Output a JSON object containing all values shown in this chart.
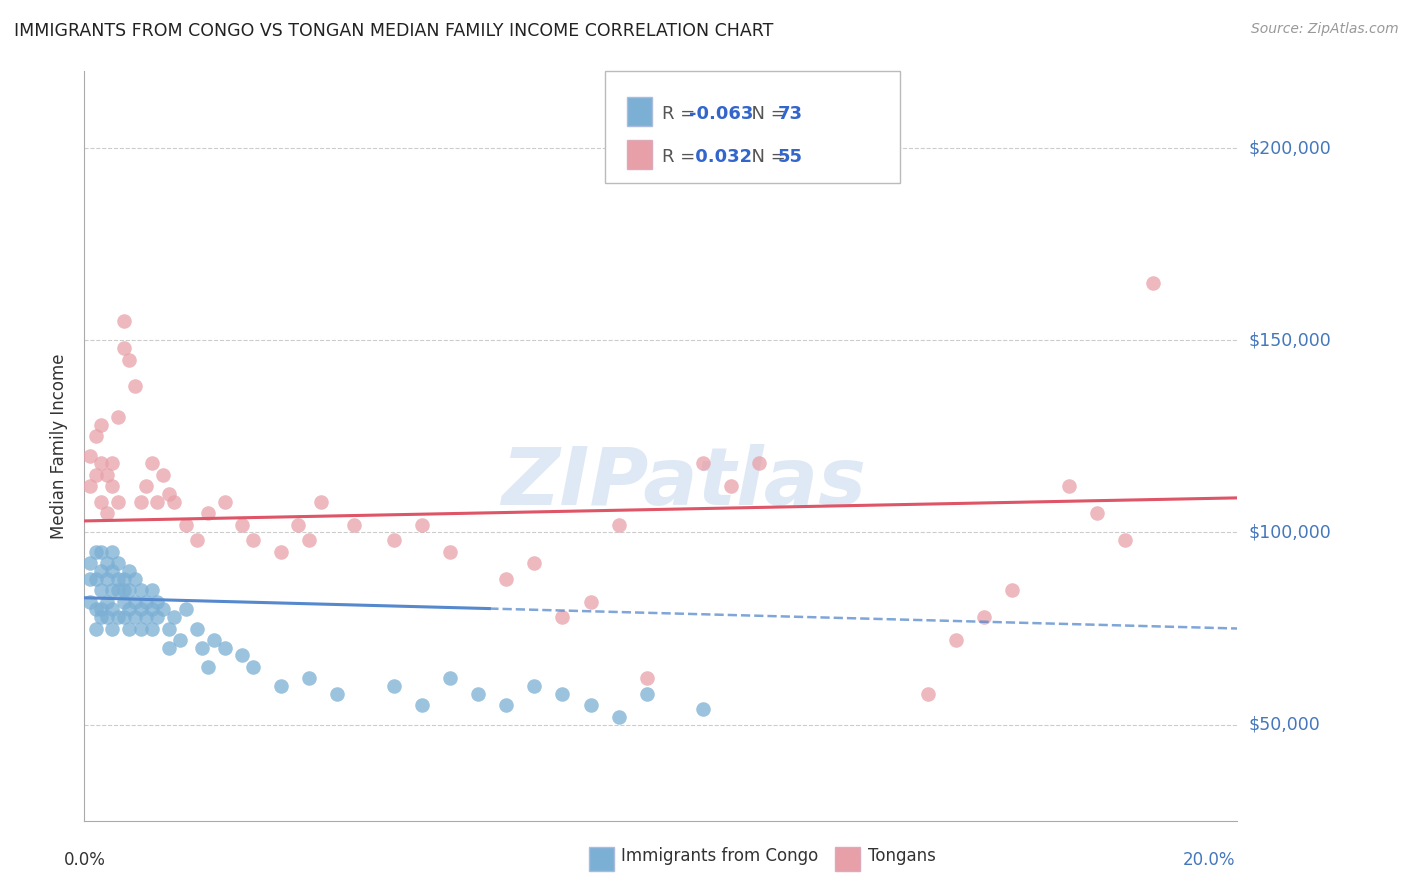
{
  "title": "IMMIGRANTS FROM CONGO VS TONGAN MEDIAN FAMILY INCOME CORRELATION CHART",
  "source": "Source: ZipAtlas.com",
  "ylabel": "Median Family Income",
  "xlim": [
    0.0,
    0.205
  ],
  "ylim": [
    25000,
    220000
  ],
  "ytick_vals": [
    50000,
    100000,
    150000,
    200000
  ],
  "ytick_labels": [
    "$50,000",
    "$100,000",
    "$150,000",
    "$200,000"
  ],
  "xtick_vals": [
    0.0,
    0.04,
    0.08,
    0.12,
    0.16,
    0.2
  ],
  "xtick_labels": [
    "0.0%",
    "",
    "",
    "",
    "",
    "20.0%"
  ],
  "legend_label1": "Immigrants from Congo",
  "legend_label2": "Tongans",
  "R1": -0.063,
  "N1": 73,
  "R2": 0.032,
  "N2": 55,
  "color1": "#7bafd4",
  "color2": "#e8a0a8",
  "line1_color": "#5588cc",
  "line2_color": "#dd5566",
  "background_color": "#ffffff",
  "grid_color": "#cccccc",
  "watermark": "ZIPatlas",
  "congo_x": [
    0.001,
    0.001,
    0.001,
    0.002,
    0.002,
    0.002,
    0.002,
    0.003,
    0.003,
    0.003,
    0.003,
    0.003,
    0.004,
    0.004,
    0.004,
    0.004,
    0.005,
    0.005,
    0.005,
    0.005,
    0.005,
    0.006,
    0.006,
    0.006,
    0.006,
    0.007,
    0.007,
    0.007,
    0.007,
    0.008,
    0.008,
    0.008,
    0.008,
    0.009,
    0.009,
    0.009,
    0.01,
    0.01,
    0.01,
    0.011,
    0.011,
    0.012,
    0.012,
    0.012,
    0.013,
    0.013,
    0.014,
    0.015,
    0.015,
    0.016,
    0.017,
    0.018,
    0.02,
    0.021,
    0.022,
    0.023,
    0.025,
    0.028,
    0.03,
    0.035,
    0.04,
    0.045,
    0.055,
    0.06,
    0.065,
    0.07,
    0.075,
    0.08,
    0.085,
    0.09,
    0.095,
    0.1,
    0.11
  ],
  "congo_y": [
    92000,
    88000,
    82000,
    95000,
    88000,
    80000,
    75000,
    90000,
    85000,
    80000,
    78000,
    95000,
    88000,
    82000,
    78000,
    92000,
    95000,
    90000,
    85000,
    80000,
    75000,
    88000,
    85000,
    92000,
    78000,
    82000,
    88000,
    85000,
    78000,
    90000,
    85000,
    80000,
    75000,
    88000,
    82000,
    78000,
    85000,
    80000,
    75000,
    82000,
    78000,
    85000,
    80000,
    75000,
    78000,
    82000,
    80000,
    75000,
    70000,
    78000,
    72000,
    80000,
    75000,
    70000,
    65000,
    72000,
    70000,
    68000,
    65000,
    60000,
    62000,
    58000,
    60000,
    55000,
    62000,
    58000,
    55000,
    60000,
    58000,
    55000,
    52000,
    58000,
    54000
  ],
  "tongan_x": [
    0.001,
    0.001,
    0.002,
    0.002,
    0.003,
    0.003,
    0.003,
    0.004,
    0.004,
    0.005,
    0.005,
    0.006,
    0.006,
    0.007,
    0.007,
    0.008,
    0.009,
    0.01,
    0.011,
    0.012,
    0.013,
    0.014,
    0.015,
    0.016,
    0.018,
    0.02,
    0.022,
    0.025,
    0.028,
    0.03,
    0.035,
    0.038,
    0.04,
    0.042,
    0.048,
    0.055,
    0.06,
    0.065,
    0.075,
    0.08,
    0.085,
    0.09,
    0.095,
    0.1,
    0.11,
    0.115,
    0.12,
    0.15,
    0.155,
    0.16,
    0.165,
    0.175,
    0.18,
    0.185,
    0.19
  ],
  "tongan_y": [
    112000,
    120000,
    125000,
    115000,
    118000,
    128000,
    108000,
    115000,
    105000,
    112000,
    118000,
    108000,
    130000,
    148000,
    155000,
    145000,
    138000,
    108000,
    112000,
    118000,
    108000,
    115000,
    110000,
    108000,
    102000,
    98000,
    105000,
    108000,
    102000,
    98000,
    95000,
    102000,
    98000,
    108000,
    102000,
    98000,
    102000,
    95000,
    88000,
    92000,
    78000,
    82000,
    102000,
    62000,
    118000,
    112000,
    118000,
    58000,
    72000,
    78000,
    85000,
    112000,
    105000,
    98000,
    165000
  ],
  "congo_line_start": 0.0,
  "congo_line_solid_end": 0.072,
  "congo_line_end": 0.205,
  "congo_line_y0": 83000,
  "congo_line_y1": 75000,
  "tongan_line_start": 0.0,
  "tongan_line_end": 0.205,
  "tongan_line_y0": 103000,
  "tongan_line_y1": 109000
}
